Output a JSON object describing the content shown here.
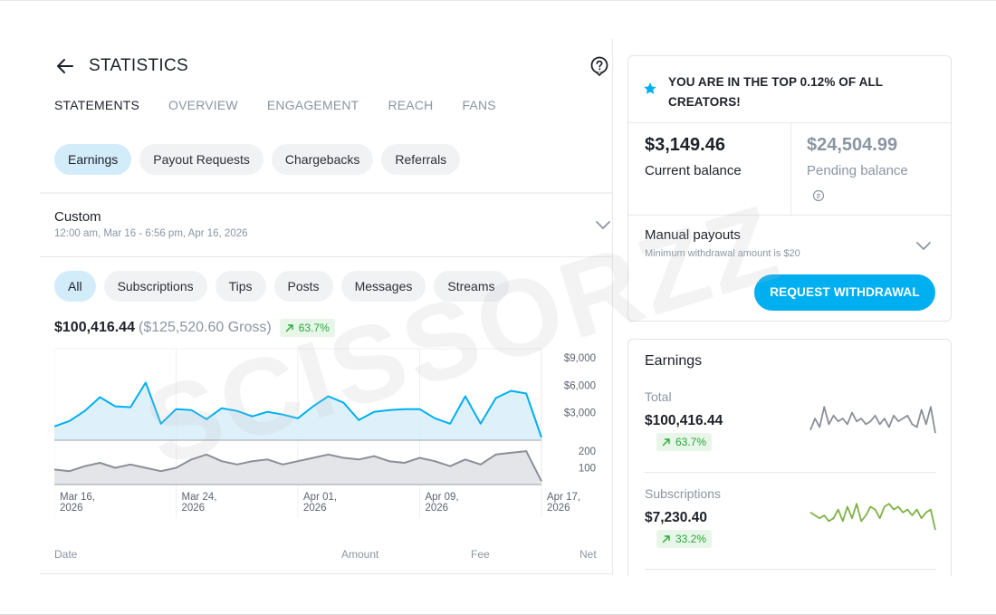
{
  "header": {
    "title": "STATISTICS"
  },
  "tabs": [
    {
      "label": "STATEMENTS",
      "active": true
    },
    {
      "label": "OVERVIEW",
      "active": false
    },
    {
      "label": "ENGAGEMENT",
      "active": false
    },
    {
      "label": "REACH",
      "active": false
    },
    {
      "label": "FANS",
      "active": false
    }
  ],
  "type_chips": [
    {
      "label": "Earnings",
      "active": true
    },
    {
      "label": "Payout Requests",
      "active": false
    },
    {
      "label": "Chargebacks",
      "active": false
    },
    {
      "label": "Referrals",
      "active": false
    }
  ],
  "period": {
    "label": "Custom",
    "range": "12:00 am, Mar 16 - 6:56 pm, Apr 16, 2026"
  },
  "filter_chips": [
    {
      "label": "All",
      "active": true
    },
    {
      "label": "Subscriptions",
      "active": false
    },
    {
      "label": "Tips",
      "active": false
    },
    {
      "label": "Posts",
      "active": false
    },
    {
      "label": "Messages",
      "active": false
    },
    {
      "label": "Streams",
      "active": false
    }
  ],
  "summary": {
    "net": "$100,416.44",
    "gross": "($125,520.60 Gross)",
    "trend": "63.7%"
  },
  "chart_data": {
    "type": "area",
    "x_ticks": [
      "Mar 16,\n2026",
      "Mar 24,\n2026",
      "Apr 01,\n2026",
      "Apr 09,\n2026",
      "Apr 17,\n2026"
    ],
    "amount_series": {
      "y_ticks": [
        "$9,000",
        "$6,000",
        "$3,000"
      ],
      "ylim": [
        0,
        10000
      ],
      "values": [
        1500,
        2100,
        3200,
        4700,
        3700,
        3600,
        6300,
        1800,
        3400,
        3300,
        2300,
        3500,
        3200,
        2600,
        3100,
        2800,
        2400,
        3700,
        4800,
        4100,
        2200,
        3100,
        3300,
        3400,
        3400,
        2400,
        1800,
        4800,
        1800,
        4600,
        5400,
        5100,
        300
      ]
    },
    "count_series": {
      "y_ticks": [
        "200",
        "100"
      ],
      "ylim": [
        0,
        260
      ],
      "values": [
        90,
        80,
        110,
        130,
        100,
        120,
        100,
        80,
        100,
        150,
        180,
        140,
        120,
        140,
        150,
        120,
        140,
        160,
        180,
        160,
        150,
        170,
        140,
        130,
        160,
        140,
        110,
        150,
        120,
        180,
        190,
        200,
        20
      ]
    }
  },
  "table_head": {
    "date": "Date",
    "amount": "Amount",
    "fee": "Fee",
    "net": "Net"
  },
  "balance": {
    "top_text_line1": "YOU ARE IN THE TOP 0.12% OF ALL",
    "top_text_line2": "CREATORS!",
    "current_amount": "$3,149.46",
    "current_label": "Current balance",
    "pending_amount": "$24,504.99",
    "pending_label": "Pending balance",
    "payout_title": "Manual payouts",
    "payout_sub": "Minimum withdrawal amount is $20",
    "withdraw_label": "REQUEST WITHDRAWAL"
  },
  "earnings": {
    "title": "Earnings",
    "items": [
      {
        "label": "Total",
        "value": "$100,416.44",
        "trend": "63.7%",
        "spark": [
          0.1,
          0.5,
          0.2,
          0.9,
          0.3,
          0.6,
          0.4,
          0.5,
          0.3,
          0.7,
          0.4,
          0.5,
          0.3,
          0.4,
          0.6,
          0.3,
          0.5,
          0.2,
          0.6,
          0.4,
          0.5,
          0.6,
          0.3,
          0.2,
          0.8,
          0.3,
          0.9,
          0.0
        ]
      },
      {
        "label": "Subscriptions",
        "value": "$7,230.40",
        "trend": "33.2%",
        "spark": [
          0.6,
          0.5,
          0.4,
          0.5,
          0.3,
          0.4,
          0.7,
          0.3,
          0.8,
          0.4,
          0.9,
          0.3,
          0.5,
          0.8,
          0.7,
          0.4,
          0.8,
          0.9,
          0.7,
          0.8,
          0.6,
          0.7,
          0.5,
          0.7,
          0.4,
          0.6,
          0.7,
          0.0
        ]
      }
    ]
  },
  "watermark": "SCISSORZZ",
  "colors": {
    "accent": "#00aff0",
    "area_fill": "#d3ecfa",
    "gray_line": "#8a8f98",
    "green": "#2ba93a",
    "spark_green": "#7cb342"
  }
}
